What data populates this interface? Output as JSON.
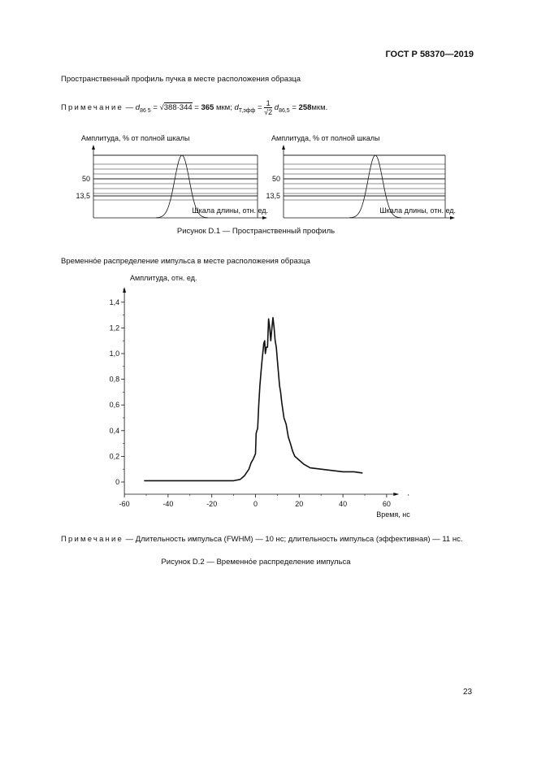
{
  "header": {
    "standard": "ГОСТ Р 58370—2019"
  },
  "section1": {
    "heading": "Пространственный профиль пучка в месте расположения образца",
    "note": {
      "label": "Примечание",
      "dash": "—",
      "d_symbol": "d",
      "d_sub": "86 5",
      "eq": "=",
      "sqrt_arg": "388·344",
      "value1": "365",
      "unit1": "мкм;",
      "d2_sub": "Т,эфф",
      "frac_num": "1",
      "frac_den": "√2",
      "d3_sub": "86,5",
      "value2": "258",
      "unit2": "мкм."
    },
    "caption": "Рисунок D.1 — Пространственный профиль"
  },
  "section2": {
    "heading": "Временно́е распределение импульса в месте расположения образца",
    "note": "— Длительность импульса (FWHM) — 10 нс; длительность импульса (эффективная) — 11 нс.",
    "note_label": "Примечание",
    "caption": "Рисунок D.2 — Временно́е распределение импульса"
  },
  "page_number": "23",
  "chart_data": [
    {
      "type": "line",
      "ylabel": "Амплитуда, % от полной шкалы",
      "xlabel": "Шкала длины, отн. ед.",
      "yticks": [
        "50",
        "13,5"
      ],
      "grid": "horizontal lines"
    },
    {
      "type": "line",
      "ylabel": "Амплитуда, % от полной шкалы",
      "xlabel": "Шкала длины, отн. ед.",
      "yticks": [
        "50",
        "13,5"
      ],
      "grid": "horizontal lines"
    },
    {
      "type": "line",
      "ylabel": "Амплитуда, отн. ед.",
      "xlabel": "Время, нс",
      "xlim": [
        -60,
        65
      ],
      "ylim": [
        -0.09,
        1.5
      ],
      "xticks": [
        -60,
        -40,
        -20,
        0,
        20,
        40,
        60
      ],
      "yticks": [
        0,
        0.2,
        0.4,
        0.6,
        0.8,
        1.0,
        1.2,
        1.4
      ],
      "ytick_labels": [
        "0",
        "0,2",
        "0,4",
        "0,6",
        "0,8",
        "1,0",
        "1,2",
        "1,4"
      ],
      "grid": false,
      "x": [
        -51,
        -45,
        -40,
        -35,
        -30,
        -25,
        -20,
        -15,
        -10,
        -7,
        -5,
        -3,
        -2,
        -1,
        0,
        0.3,
        1,
        1.5,
        2,
        2.5,
        3,
        3.8,
        4.2,
        4.5,
        5,
        5.5,
        6,
        6.5,
        7,
        7.5,
        8,
        8.5,
        9,
        9.5,
        10,
        11,
        11.5,
        12,
        13,
        14,
        15,
        16,
        17,
        18,
        20,
        22,
        25,
        30,
        35,
        40,
        45,
        49
      ],
      "y": [
        0.01,
        0.01,
        0.01,
        0.01,
        0.01,
        0.01,
        0.01,
        0.01,
        0.01,
        0.02,
        0.05,
        0.1,
        0.15,
        0.18,
        0.22,
        0.38,
        0.42,
        0.6,
        0.75,
        0.85,
        0.95,
        1.08,
        1.1,
        1.0,
        1.05,
        1.05,
        1.27,
        1.2,
        1.1,
        1.2,
        1.28,
        1.2,
        1.1,
        1.05,
        0.95,
        0.75,
        0.7,
        0.62,
        0.5,
        0.45,
        0.35,
        0.3,
        0.24,
        0.2,
        0.17,
        0.14,
        0.11,
        0.1,
        0.09,
        0.08,
        0.08,
        0.07
      ]
    }
  ]
}
